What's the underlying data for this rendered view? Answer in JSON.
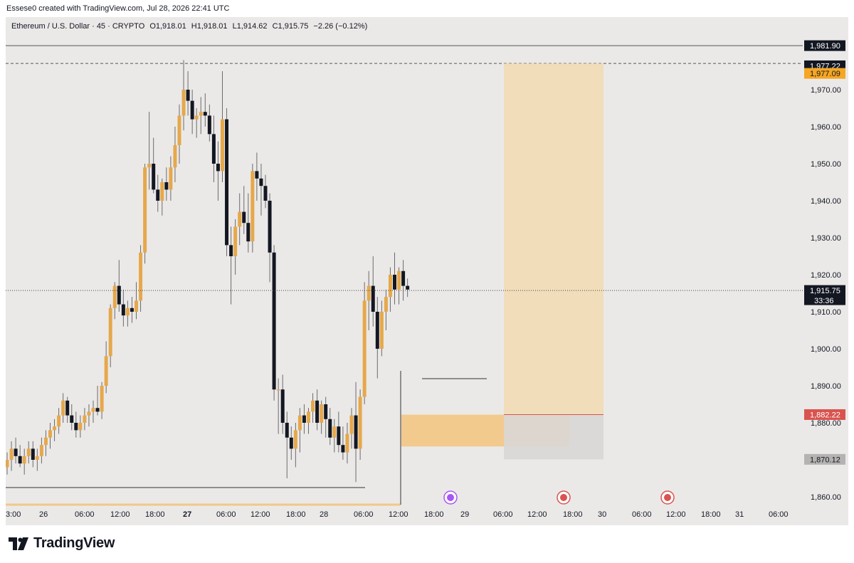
{
  "header": {
    "caption": "Essese0 created with TradingView.com, Jul 28, 2026 22:41 UTC"
  },
  "legend": {
    "symbol": "Ethereum / U.S. Dollar · 45 · CRYPTO",
    "open": "O1,918.01",
    "high": "H1,918.01",
    "low": "L1,914.62",
    "close": "C1,915.75",
    "change": "−2.26 (−0.12%)"
  },
  "footer": {
    "brand": "TradingView"
  },
  "colors": {
    "up": "#e6a84b",
    "down": "#131722",
    "background": "#ebe9e8"
  },
  "chart_data": {
    "type": "candlestick",
    "symbol": "Ethereum / U.S. Dollar",
    "interval": "45",
    "ylim": [
      1855,
      1990
    ],
    "y_ticks": [
      1860,
      1870,
      1880,
      1890,
      1900,
      1910,
      1920,
      1930,
      1940,
      1950,
      1960,
      1970
    ],
    "x_tick_labels": [
      "3:00",
      "26",
      "06:00",
      "12:00",
      "18:00",
      "27",
      "06:00",
      "12:00",
      "18:00",
      "28",
      "06:00",
      "12:00",
      "18:00",
      "29",
      "06:00",
      "12:00",
      "18:00",
      "30",
      "06:00",
      "12:00",
      "18:00",
      "31",
      "06:00"
    ],
    "price_labels": [
      {
        "text": "1,981.90",
        "style": "dark"
      },
      {
        "text": "1,977.22",
        "style": "dark"
      },
      {
        "text": "1,977.09",
        "style": "orange"
      },
      {
        "text": "1,915.75",
        "style": "dark",
        "sub": "33:36"
      },
      {
        "text": "1,882.22",
        "style": "red"
      },
      {
        "text": "1,870.12",
        "style": "grey"
      }
    ],
    "levels": {
      "last_price": 1915.75,
      "high_line": 1981.9,
      "dashed_line": 1977.09,
      "target": 1977.09,
      "entry": 1882.22,
      "stop": 1870.12
    },
    "zones": [
      {
        "kind": "demand",
        "top": 1882.2,
        "bottom": 1873.6
      },
      {
        "kind": "profit-target",
        "top": 1977.09,
        "bottom": 1882.22
      },
      {
        "kind": "stop-loss",
        "top": 1882.22,
        "bottom": 1870.12
      }
    ],
    "candles": [
      [
        1868,
        1872,
        1866,
        1870
      ],
      [
        1870,
        1875,
        1867,
        1873
      ],
      [
        1873,
        1876,
        1869,
        1871
      ],
      [
        1871,
        1874,
        1868,
        1869
      ],
      [
        1869,
        1873,
        1866,
        1871
      ],
      [
        1871,
        1875,
        1869,
        1873
      ],
      [
        1873,
        1875,
        1868,
        1870
      ],
      [
        1870,
        1873,
        1867,
        1871
      ],
      [
        1871,
        1876,
        1869,
        1874
      ],
      [
        1874,
        1878,
        1871,
        1876
      ],
      [
        1876,
        1880,
        1873,
        1878
      ],
      [
        1878,
        1881,
        1875,
        1879
      ],
      [
        1879,
        1884,
        1877,
        1882
      ],
      [
        1882,
        1888,
        1880,
        1886
      ],
      [
        1886,
        1887,
        1880,
        1882
      ],
      [
        1882,
        1885,
        1878,
        1880
      ],
      [
        1880,
        1883,
        1876,
        1878
      ],
      [
        1878,
        1882,
        1876,
        1880
      ],
      [
        1880,
        1884,
        1878,
        1882
      ],
      [
        1882,
        1885,
        1879,
        1883
      ],
      [
        1883,
        1886,
        1880,
        1884
      ],
      [
        1884,
        1890,
        1882,
        1883
      ],
      [
        1883,
        1891,
        1881,
        1890
      ],
      [
        1890,
        1902,
        1888,
        1898
      ],
      [
        1898,
        1912,
        1895,
        1911
      ],
      [
        1911,
        1918,
        1908,
        1917
      ],
      [
        1917,
        1924,
        1910,
        1912
      ],
      [
        1912,
        1916,
        1906,
        1909
      ],
      [
        1909,
        1913,
        1906,
        1911
      ],
      [
        1911,
        1914,
        1907,
        1910
      ],
      [
        1910,
        1918,
        1908,
        1913
      ],
      [
        1913,
        1928,
        1910,
        1926
      ],
      [
        1926,
        1950,
        1923,
        1949
      ],
      [
        1949,
        1964,
        1943,
        1950
      ],
      [
        1950,
        1957,
        1942,
        1943
      ],
      [
        1943,
        1947,
        1937,
        1940
      ],
      [
        1940,
        1946,
        1936,
        1945
      ],
      [
        1945,
        1949,
        1940,
        1943
      ],
      [
        1943,
        1952,
        1940,
        1949
      ],
      [
        1949,
        1960,
        1945,
        1955
      ],
      [
        1955,
        1966,
        1950,
        1963
      ],
      [
        1963,
        1978,
        1959,
        1970
      ],
      [
        1970,
        1975,
        1963,
        1967
      ],
      [
        1967,
        1970,
        1958,
        1962
      ],
      [
        1962,
        1965,
        1957,
        1963
      ],
      [
        1963,
        1968,
        1958,
        1964
      ],
      [
        1964,
        1969,
        1960,
        1963
      ],
      [
        1963,
        1966,
        1956,
        1958
      ],
      [
        1958,
        1963,
        1945,
        1950
      ],
      [
        1950,
        1956,
        1940,
        1948
      ],
      [
        1948,
        1975,
        1945,
        1962
      ],
      [
        1962,
        1965,
        1925,
        1928
      ],
      [
        1928,
        1933,
        1912,
        1925
      ],
      [
        1925,
        1935,
        1920,
        1933
      ],
      [
        1933,
        1942,
        1928,
        1937
      ],
      [
        1937,
        1944,
        1931,
        1934
      ],
      [
        1934,
        1942,
        1926,
        1929
      ],
      [
        1929,
        1950,
        1926,
        1948
      ],
      [
        1948,
        1953,
        1940,
        1946
      ],
      [
        1946,
        1950,
        1936,
        1944
      ],
      [
        1944,
        1947,
        1938,
        1940
      ],
      [
        1940,
        1942,
        1918,
        1926
      ],
      [
        1926,
        1928,
        1886,
        1889
      ],
      [
        1889,
        1892,
        1877,
        1889
      ],
      [
        1889,
        1893,
        1877,
        1880
      ],
      [
        1880,
        1883,
        1865,
        1876
      ],
      [
        1876,
        1879,
        1870,
        1873
      ],
      [
        1873,
        1880,
        1868,
        1878
      ],
      [
        1878,
        1884,
        1872,
        1882
      ],
      [
        1882,
        1885,
        1877,
        1880
      ],
      [
        1880,
        1884,
        1877,
        1883
      ],
      [
        1883,
        1888,
        1880,
        1886
      ],
      [
        1886,
        1889,
        1878,
        1880
      ],
      [
        1880,
        1886,
        1877,
        1885
      ],
      [
        1885,
        1887,
        1876,
        1881
      ],
      [
        1881,
        1884,
        1874,
        1876
      ],
      [
        1876,
        1881,
        1872,
        1879
      ],
      [
        1879,
        1883,
        1872,
        1874
      ],
      [
        1874,
        1879,
        1870,
        1872
      ],
      [
        1872,
        1880,
        1869,
        1877
      ],
      [
        1877,
        1884,
        1873,
        1882
      ],
      [
        1882,
        1891,
        1864,
        1873
      ],
      [
        1873,
        1889,
        1870,
        1887
      ],
      [
        1887,
        1918,
        1885,
        1913
      ],
      [
        1913,
        1921,
        1905,
        1917
      ],
      [
        1917,
        1925,
        1906,
        1910
      ],
      [
        1910,
        1914,
        1892,
        1900
      ],
      [
        1900,
        1913,
        1898,
        1910
      ],
      [
        1910,
        1916,
        1905,
        1914
      ],
      [
        1914,
        1922,
        1910,
        1920
      ],
      [
        1920,
        1926,
        1912,
        1916
      ],
      [
        1916,
        1922,
        1912,
        1921
      ],
      [
        1921,
        1924,
        1913,
        1917
      ],
      [
        1917,
        1919,
        1914,
        1916
      ]
    ]
  }
}
